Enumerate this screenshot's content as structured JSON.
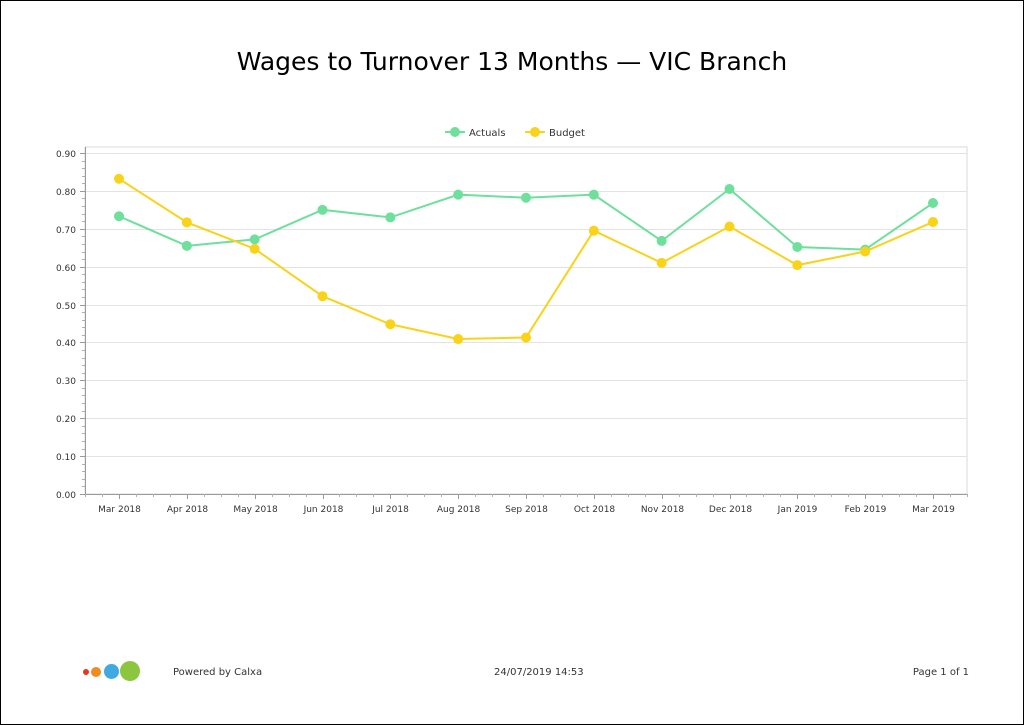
{
  "chart_data": {
    "type": "line",
    "title": "Wages to Turnover 13 Months — VIC Branch",
    "categories": [
      "Mar 2018",
      "Apr 2018",
      "May 2018",
      "Jun 2018",
      "Jul 2018",
      "Aug 2018",
      "Sep 2018",
      "Oct 2018",
      "Nov 2018",
      "Dec 2018",
      "Jan 2019",
      "Feb 2019",
      "Mar 2019"
    ],
    "series": [
      {
        "name": "Actuals",
        "color": "#6ee09c",
        "values": [
          0.733,
          0.655,
          0.672,
          0.75,
          0.73,
          0.79,
          0.782,
          0.79,
          0.668,
          0.805,
          0.652,
          0.645,
          0.768
        ]
      },
      {
        "name": "Budget",
        "color": "#f9d21a",
        "values": [
          0.832,
          0.717,
          0.647,
          0.522,
          0.448,
          0.409,
          0.413,
          0.695,
          0.61,
          0.706,
          0.604,
          0.64,
          0.718
        ]
      }
    ],
    "ylim": [
      0,
      0.9
    ],
    "yticks": [
      "0.00",
      "0.10",
      "0.20",
      "0.30",
      "0.40",
      "0.50",
      "0.60",
      "0.70",
      "0.80",
      "0.90"
    ],
    "grid": true,
    "legend": "top-center"
  },
  "footer": {
    "powered_by": "Powered by Calxa",
    "timestamp": "24/07/2019 14:53",
    "page": "Page 1 of 1",
    "logo_colors": [
      "#e23a22",
      "#f08c1e",
      "#3fa9e0",
      "#8cc63f"
    ]
  }
}
